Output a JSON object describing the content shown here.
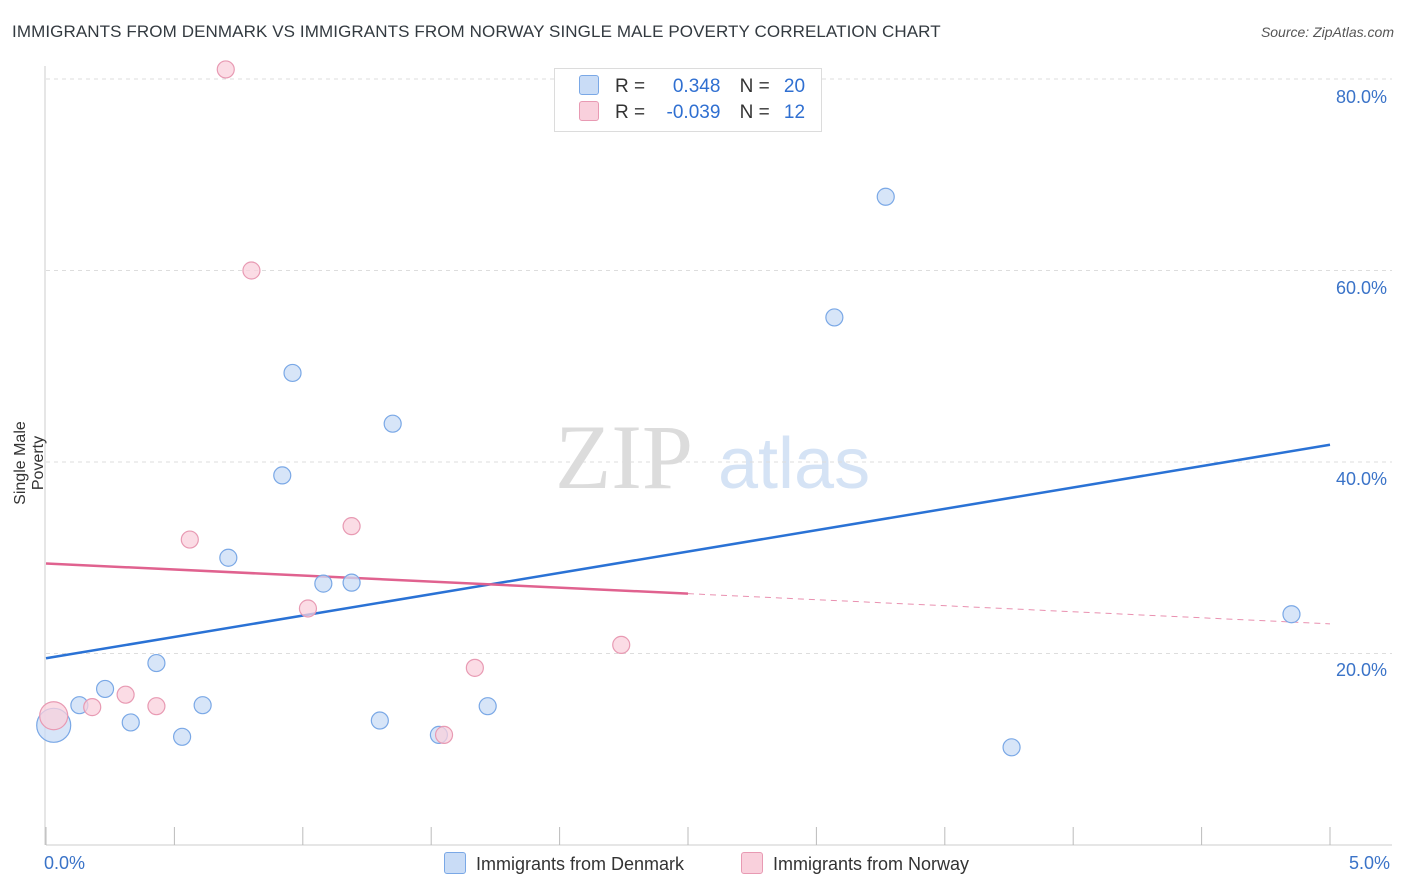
{
  "header": {
    "title": "IMMIGRANTS FROM DENMARK VS IMMIGRANTS FROM NORWAY SINGLE MALE POVERTY CORRELATION CHART",
    "source": "Source: ZipAtlas.com"
  },
  "watermark": {
    "zip": "ZIP",
    "atlas": "atlas"
  },
  "stats_legend": {
    "rows": [
      {
        "r_label": "R =",
        "r_value": "0.348",
        "n_label": "N =",
        "n_value": "20",
        "color": "#b9d3f5"
      },
      {
        "r_label": "R =",
        "r_value": "-0.039",
        "n_label": "N =",
        "n_value": "12",
        "color": "#f9c6d4"
      }
    ]
  },
  "chart_data": {
    "type": "scatter",
    "title": "IMMIGRANTS FROM DENMARK VS IMMIGRANTS FROM NORWAY SINGLE MALE POVERTY CORRELATION CHART",
    "xlabel": "",
    "ylabel": "Single Male Poverty",
    "xlim": [
      0,
      5
    ],
    "ylim": [
      0,
      80
    ],
    "x_tick_labels": [
      "0.0%",
      "5.0%"
    ],
    "y_ticks": [
      20,
      40,
      60,
      80
    ],
    "y_tick_labels": [
      "20.0%",
      "40.0%",
      "60.0%",
      "80.0%"
    ],
    "grid": true,
    "legend_position": "bottom",
    "series": [
      {
        "name": "Immigrants from Denmark",
        "color": "#7aa8e6",
        "fill": "#c9dcf6",
        "points": [
          [
            0.03,
            12.5
          ],
          [
            0.13,
            14.6
          ],
          [
            0.23,
            16.3
          ],
          [
            0.33,
            12.8
          ],
          [
            0.43,
            19.0
          ],
          [
            0.53,
            11.3
          ],
          [
            0.61,
            14.6
          ],
          [
            0.71,
            30.0
          ],
          [
            0.92,
            38.6
          ],
          [
            0.96,
            49.3
          ],
          [
            1.08,
            27.3
          ],
          [
            1.19,
            27.4
          ],
          [
            1.35,
            44.0
          ],
          [
            1.3,
            13.0
          ],
          [
            1.53,
            11.5
          ],
          [
            1.72,
            14.5
          ],
          [
            3.07,
            55.1
          ],
          [
            3.27,
            67.7
          ],
          [
            3.76,
            10.2
          ],
          [
            4.85,
            24.1
          ]
        ],
        "trend": {
          "x": [
            0,
            5
          ],
          "y": [
            19.5,
            41.8
          ],
          "dashed_from": null
        }
      },
      {
        "name": "Immigrants from Norway",
        "color": "#e89ab3",
        "fill": "#f9d0dc",
        "points": [
          [
            0.03,
            13.5
          ],
          [
            0.18,
            14.4
          ],
          [
            0.31,
            15.7
          ],
          [
            0.43,
            14.5
          ],
          [
            0.56,
            31.9
          ],
          [
            0.7,
            81.0
          ],
          [
            0.8,
            60.0
          ],
          [
            1.02,
            24.7
          ],
          [
            1.19,
            33.3
          ],
          [
            1.55,
            11.5
          ],
          [
            1.67,
            18.5
          ],
          [
            2.24,
            20.9
          ]
        ],
        "trend": {
          "x": [
            0,
            5
          ],
          "y": [
            29.4,
            23.1
          ],
          "dashed_from": 2.5
        }
      }
    ]
  }
}
